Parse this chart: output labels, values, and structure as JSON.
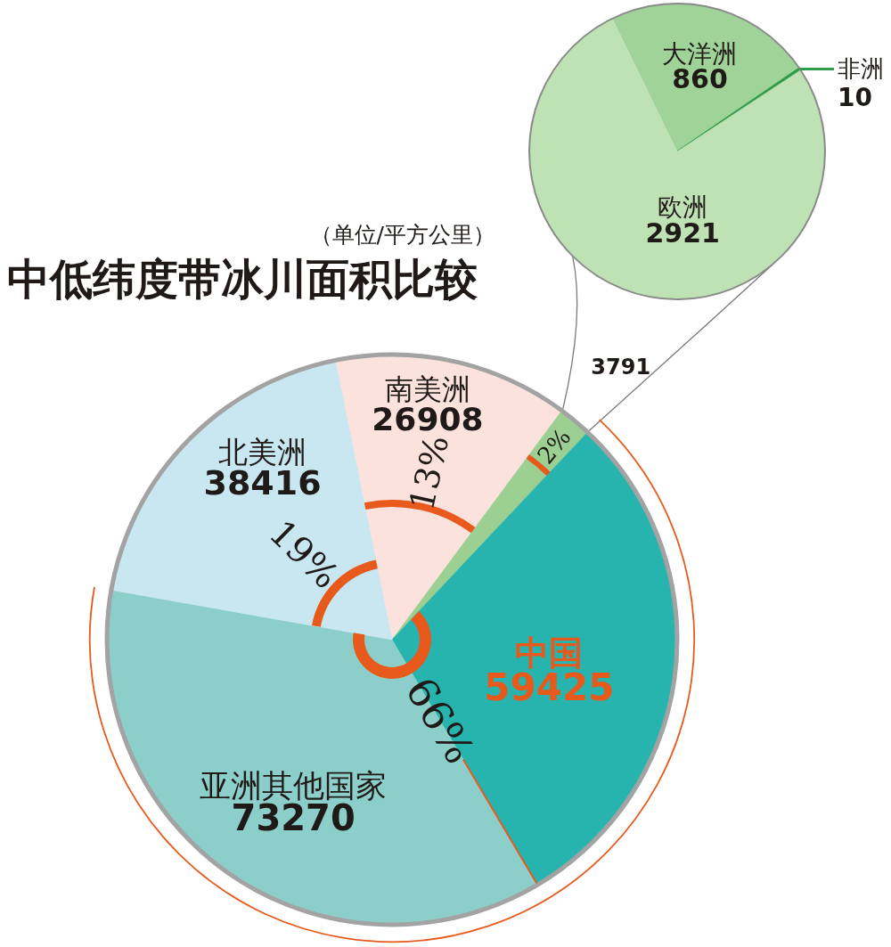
{
  "chart_data": [
    {
      "type": "pie",
      "title": "中低纬度带冰川面积比较",
      "subtitle": "（单位/平方公里）",
      "categories": [
        "南美洲",
        null,
        "中国",
        "亚洲其他国家",
        "北美洲"
      ],
      "values": [
        26908,
        3791,
        59425,
        73270,
        38416
      ],
      "colors": [
        "#fbe2dd",
        "#9ccf92",
        "#27b3ae",
        "#8ccfca",
        "#c9e7f1"
      ],
      "data_labels": true,
      "annotations": [
        "66%",
        "19%",
        "13%",
        "2%"
      ]
    },
    {
      "type": "pie",
      "categories": [
        "大洋洲",
        "非洲",
        "欧洲"
      ],
      "values": [
        860,
        10,
        2921
      ],
      "colors": [
        "#9fd398",
        "#2e9b48",
        "#bfe2b5"
      ],
      "data_labels": true
    }
  ]
}
